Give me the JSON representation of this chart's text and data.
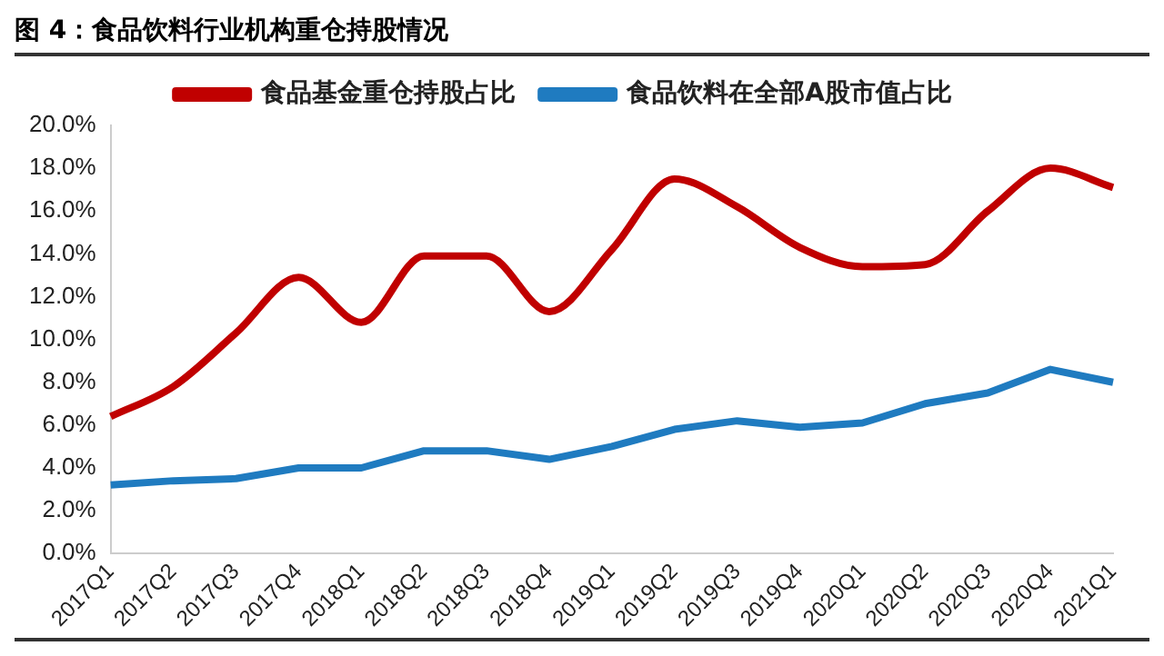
{
  "chart_data": {
    "type": "line",
    "title": "图 4：食品饮料行业机构重仓持股情况",
    "categories": [
      "2017Q1",
      "2017Q2",
      "2017Q3",
      "2017Q4",
      "2018Q1",
      "2018Q2",
      "2018Q3",
      "2018Q4",
      "2019Q1",
      "2019Q2",
      "2019Q3",
      "2019Q4",
      "2020Q1",
      "2020Q2",
      "2020Q3",
      "2020Q4",
      "2021Q1"
    ],
    "series": [
      {
        "name": "食品基金重仓持股占比",
        "color": "#c00000",
        "values": [
          6.4,
          7.8,
          10.3,
          12.9,
          10.8,
          13.9,
          13.9,
          11.3,
          14.2,
          17.5,
          16.2,
          14.3,
          13.4,
          13.5,
          16.0,
          18.0,
          17.1
        ]
      },
      {
        "name": "食品饮料在全部A股市值占比",
        "color": "#1f7bc0",
        "values": [
          3.2,
          3.4,
          3.5,
          4.0,
          4.0,
          4.8,
          4.8,
          4.4,
          5.0,
          5.8,
          6.2,
          5.9,
          6.1,
          7.0,
          7.5,
          8.6,
          8.0
        ]
      }
    ],
    "ylim": [
      0,
      20
    ],
    "yticks": [
      {
        "value": 0,
        "label": "0.0%"
      },
      {
        "value": 2,
        "label": "2.0%"
      },
      {
        "value": 4,
        "label": "4.0%"
      },
      {
        "value": 6,
        "label": "6.0%"
      },
      {
        "value": 8,
        "label": "8.0%"
      },
      {
        "value": 10,
        "label": "10.0%"
      },
      {
        "value": 12,
        "label": "12.0%"
      },
      {
        "value": 14,
        "label": "14.0%"
      },
      {
        "value": 16,
        "label": "16.0%"
      },
      {
        "value": 18,
        "label": "18.0%"
      },
      {
        "value": 20,
        "label": "20.0%"
      }
    ],
    "grid": false,
    "legend": "top",
    "marker": "none",
    "line_style": "solid"
  }
}
